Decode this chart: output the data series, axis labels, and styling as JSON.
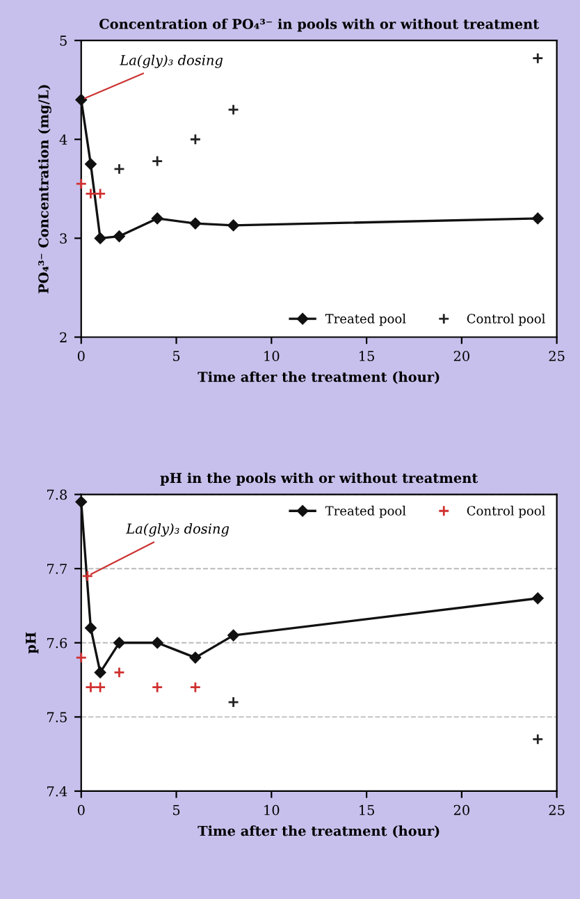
{
  "chart_data": [
    {
      "type": "line",
      "title": "Concentration of PO₄³⁻ in pools with or without treatment",
      "xlabel": "Time after the treatment (hour)",
      "ylabel": "PO₄³⁻ Concentration (mg/L)",
      "xlim": [
        0,
        25
      ],
      "xticks": [
        0,
        5,
        10,
        15,
        20,
        25
      ],
      "ylim": [
        2,
        5
      ],
      "yticks": [
        2,
        3,
        4,
        5
      ],
      "grid": false,
      "legend": "bottom right",
      "annotations": [
        {
          "text": "La(gly)₃ dosing",
          "x": 0,
          "y": 4.4
        }
      ],
      "series": [
        {
          "name": "Treated pool",
          "color": "#111111",
          "marker": "diamond",
          "line_style": "solid",
          "x": [
            0,
            0.5,
            1,
            2,
            4,
            6,
            8,
            24
          ],
          "values": [
            4.4,
            3.75,
            3.0,
            3.02,
            3.2,
            3.15,
            3.13,
            3.2
          ]
        },
        {
          "name": "Control pool",
          "type": "scatter",
          "color": "#222222",
          "colors": [
            "#d03030",
            "#d03030",
            "#d03030",
            "#222222",
            "#222222",
            "#222222",
            "#222222",
            "#222222"
          ],
          "marker": "cross",
          "x": [
            0,
            0.5,
            1,
            2,
            4,
            6,
            8,
            24
          ],
          "values": [
            3.55,
            3.45,
            3.45,
            3.7,
            3.78,
            4.0,
            4.3,
            4.82
          ]
        }
      ]
    },
    {
      "type": "line",
      "title": "pH in the pools with or without treatment",
      "xlabel": "Time after the treatment (hour)",
      "ylabel": "pH",
      "xlim": [
        0,
        25
      ],
      "xticks": [
        0,
        5,
        10,
        15,
        20,
        25
      ],
      "ylim": [
        7.4,
        7.8
      ],
      "yticks": [
        7.4,
        7.5,
        7.6,
        7.7,
        7.8
      ],
      "grid": "y",
      "legend": "top right",
      "annotations": [
        {
          "text": "La(gly)₃ dosing",
          "x": 0.33,
          "y": 7.69
        }
      ],
      "series": [
        {
          "name": "Treated pool",
          "color": "#111111",
          "marker": "diamond",
          "line_style": "solid",
          "x": [
            0,
            0.5,
            1,
            2,
            4,
            6,
            8,
            24
          ],
          "values": [
            7.79,
            7.62,
            7.56,
            7.6,
            7.6,
            7.58,
            7.61,
            7.66
          ]
        },
        {
          "name": "Control pool",
          "type": "scatter",
          "color": "#d03030",
          "colors": [
            "#d03030",
            "#d03030",
            "#d03030",
            "#d03030",
            "#d03030",
            "#d03030",
            "#d03030",
            "#222222",
            "#222222"
          ],
          "marker": "cross",
          "x": [
            0,
            0.33,
            0.5,
            1,
            2,
            4,
            6,
            8,
            24
          ],
          "values": [
            7.58,
            7.69,
            7.54,
            7.54,
            7.56,
            7.54,
            7.54,
            7.52,
            7.47
          ]
        }
      ]
    }
  ]
}
